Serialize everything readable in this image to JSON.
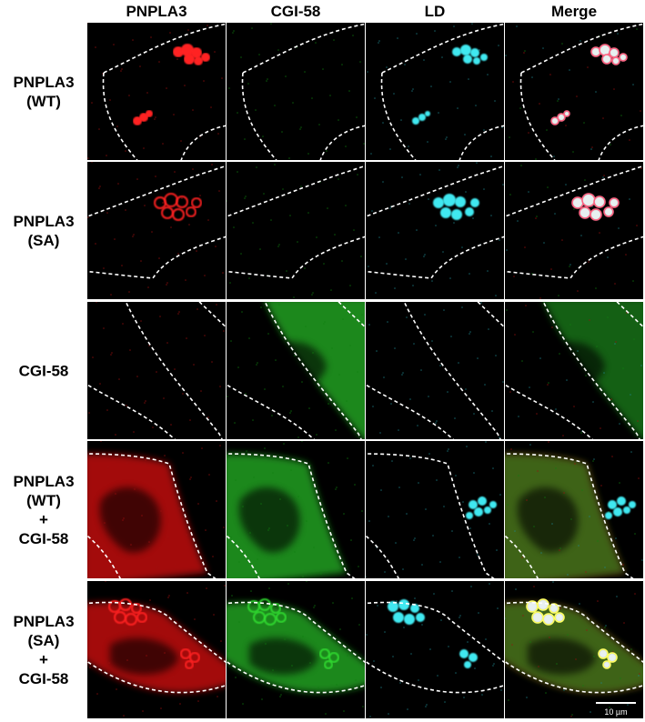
{
  "column_headers": [
    "PNPLA3",
    "CGI-58",
    "LD",
    "Merge"
  ],
  "rows": [
    {
      "label_lines": [
        "PNPLA3",
        "(WT)"
      ]
    },
    {
      "label_lines": [
        "PNPLA3",
        "(SA)"
      ]
    },
    {
      "label_lines": [
        "CGI-58"
      ]
    },
    {
      "label_lines": [
        "PNPLA3",
        "(WT)",
        "+",
        "CGI-58"
      ]
    },
    {
      "label_lines": [
        "PNPLA3",
        "(SA)",
        "+",
        "CGI-58"
      ]
    }
  ],
  "scale_bar": "10 µm"
}
